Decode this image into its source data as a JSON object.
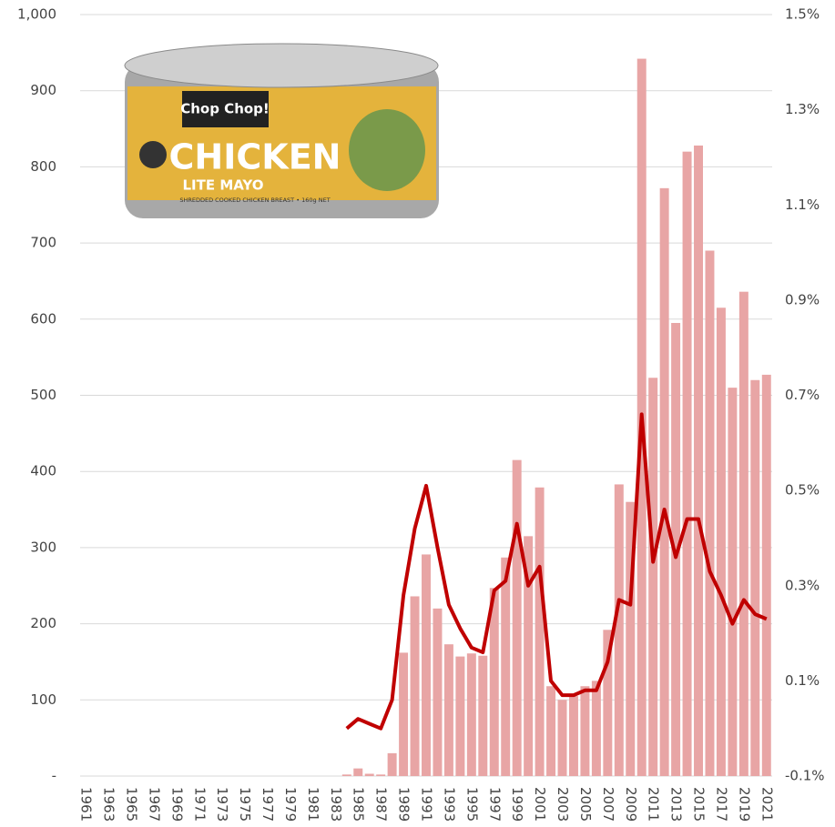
{
  "chart_data": {
    "type": "bar",
    "categories": [
      "1961",
      null,
      "1963",
      null,
      "1965",
      null,
      "1967",
      null,
      "1969",
      null,
      "1971",
      null,
      "1973",
      null,
      "1975",
      null,
      "1977",
      null,
      "1979",
      null,
      "1981",
      null,
      "1983",
      null,
      "1985",
      null,
      "1987",
      null,
      "1989",
      null,
      "1991",
      null,
      "1993",
      null,
      "1995",
      null,
      "1997",
      null,
      "1999",
      null,
      "2001",
      null,
      "2003",
      null,
      "2005",
      null,
      "2007",
      null,
      "2009",
      null,
      "2011",
      null,
      "2013",
      null,
      "2015",
      null,
      "2017",
      null,
      "2019",
      null,
      "2021"
    ],
    "series": [
      {
        "type": "bar",
        "color": "#e8a5a5",
        "values": [
          0,
          0,
          0,
          0,
          0,
          0,
          0,
          0,
          0,
          0,
          0,
          0,
          0,
          0,
          0,
          0,
          0,
          0,
          0,
          0,
          0,
          0,
          0,
          2,
          10,
          3,
          2,
          30,
          162,
          236,
          291,
          220,
          173,
          157,
          161,
          158,
          247,
          287,
          415,
          315,
          379,
          118,
          100,
          105,
          118,
          125,
          192,
          383,
          360,
          942,
          523,
          772,
          595,
          820,
          828,
          690,
          615,
          510,
          636,
          520,
          527
        ]
      },
      {
        "type": "line",
        "axis": "y2",
        "color": "#c00000",
        "values": [
          null,
          null,
          null,
          null,
          null,
          null,
          null,
          null,
          null,
          null,
          null,
          null,
          null,
          null,
          null,
          null,
          null,
          null,
          null,
          null,
          null,
          null,
          null,
          0.0,
          0.02,
          0.01,
          0.0,
          0.06,
          0.28,
          0.42,
          0.51,
          0.38,
          0.26,
          0.21,
          0.17,
          0.16,
          0.29,
          0.31,
          0.43,
          0.3,
          0.34,
          0.1,
          0.07,
          0.07,
          0.08,
          0.08,
          0.14,
          0.27,
          0.26,
          0.66,
          0.35,
          0.46,
          0.36,
          0.44,
          0.44,
          0.33,
          0.28,
          0.22,
          0.27,
          0.24,
          0.23
        ]
      }
    ],
    "ylim": [
      0,
      1000
    ],
    "yticks": [
      {
        "value": 0,
        "label": "-"
      },
      100,
      200,
      300,
      400,
      500,
      600,
      700,
      800,
      900,
      {
        "value": 1000,
        "label": "1,000"
      }
    ],
    "y2lim": [
      -0.1,
      1.5
    ],
    "y2ticks": [
      {
        "value": -0.1,
        "label": "-0.1%"
      },
      {
        "value": 0.1,
        "label": "0.1%"
      },
      {
        "value": 0.3,
        "label": "0.3%"
      },
      {
        "value": 0.5,
        "label": "0.5%"
      },
      {
        "value": 0.7,
        "label": "0.7%"
      },
      {
        "value": 0.9,
        "label": "0.9%"
      },
      {
        "value": 1.1,
        "label": "1.1%"
      },
      {
        "value": 1.3,
        "label": "1.3%"
      },
      {
        "value": 1.5,
        "label": "1.5%"
      }
    ],
    "grid": true,
    "image_texts": [
      "Chop Chop!",
      "CHICKEN",
      "LITE MAYO",
      "SHREDDED COOKED CHICKEN BREAST • 160g NET"
    ]
  }
}
